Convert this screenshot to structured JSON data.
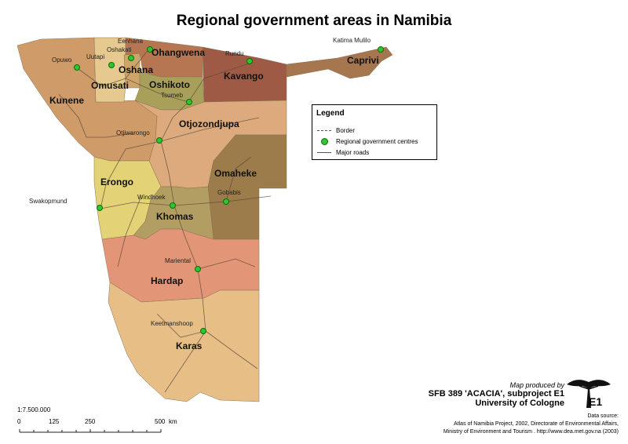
{
  "title": "Regional government areas in Namibia",
  "regions": [
    {
      "name": "Kunene",
      "color": "#cf9b68"
    },
    {
      "name": "Omusati",
      "color": "#e5c98f"
    },
    {
      "name": "Oshana",
      "color": "#cfa469"
    },
    {
      "name": "Ohangwena",
      "color": "#b77652"
    },
    {
      "name": "Oshikoto",
      "color": "#a8a05a"
    },
    {
      "name": "Kavango",
      "color": "#9e5a45"
    },
    {
      "name": "Caprivi",
      "color": "#a6764f"
    },
    {
      "name": "Otjozondjupa",
      "color": "#dcaa7c"
    },
    {
      "name": "Erongo",
      "color": "#e3d276"
    },
    {
      "name": "Omaheke",
      "color": "#9b7c4a"
    },
    {
      "name": "Khomas",
      "color": "#b29e62"
    },
    {
      "name": "Hardap",
      "color": "#e39677"
    },
    {
      "name": "Karas",
      "color": "#e7bf86"
    }
  ],
  "towns": [
    "Opuwo",
    "Uutapi",
    "Oshakati",
    "Eenhana",
    "Rundu",
    "Katima Mulilo",
    "Tsumeb",
    "Otjiwarongo",
    "Swakopmund",
    "Windhoek",
    "Gobabis",
    "Mariental",
    "Keetmanshoop"
  ],
  "legend": {
    "title": "Legend",
    "items": [
      {
        "label": "Border",
        "symbol": "dashed-line"
      },
      {
        "label": "Regional government centres",
        "symbol": "green-dot"
      },
      {
        "label": "Major roads",
        "symbol": "thin-line"
      }
    ]
  },
  "credits": {
    "produced_by": "Map produced by",
    "project": "SFB 389 'ACACIA', subproject E1",
    "university": "University of Cologne",
    "logo_label": "E1"
  },
  "data_source": {
    "heading": "Data source:",
    "line1": "Atlas of Namibia Project, 2002, Directorate of Environmental Affairs,",
    "line2": "Ministry of Environment and Tourism . http://www.dea.met.gov.na (2003)"
  },
  "scale": {
    "ratio": "1:7.500.000",
    "ticks": [
      "0",
      "125",
      "250",
      "500"
    ],
    "unit": "km"
  },
  "colors": {
    "town_marker": "#2fc52f",
    "road": "#5b4a3a"
  }
}
